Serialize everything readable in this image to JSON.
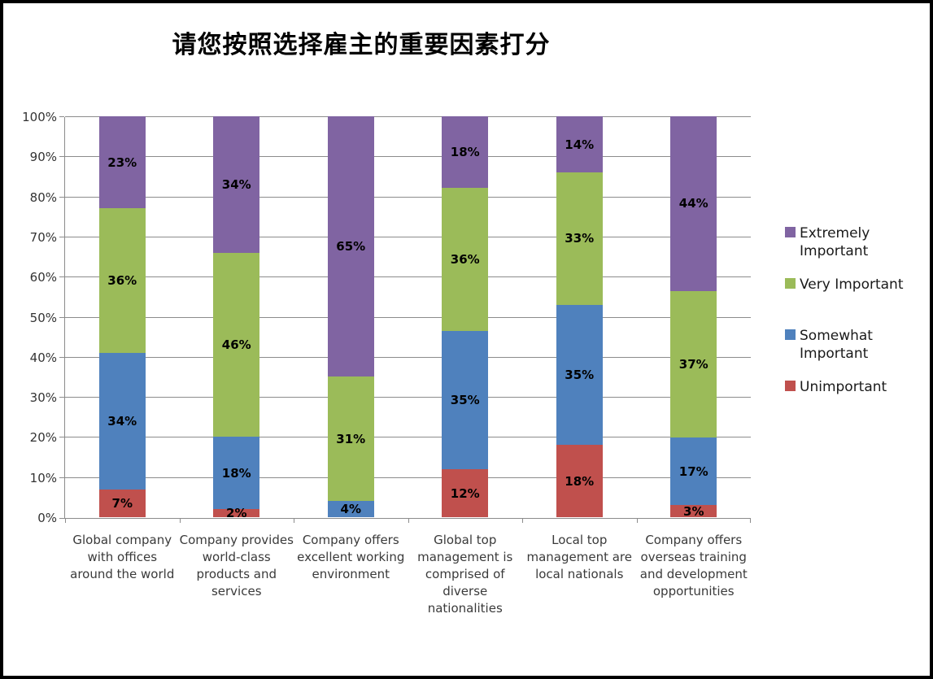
{
  "chart_data": {
    "type": "bar",
    "stacked": true,
    "units": "percent",
    "title": "请您按照选择雇主的重要因素打分",
    "categories": [
      "Global company with offices around the world",
      "Company provides world-class products and services",
      "Company offers excellent working environment",
      "Global top management is comprised of diverse nationalities",
      "Local top management are local nationals",
      "Company offers overseas training and development opportunities"
    ],
    "series": [
      {
        "name": "Unimportant",
        "color": "#C0504D",
        "values": [
          7,
          2,
          0,
          12,
          18,
          3
        ]
      },
      {
        "name": "Somewhat Important",
        "color": "#4F81BD",
        "values": [
          34,
          18,
          4,
          35,
          35,
          17
        ]
      },
      {
        "name": "Very Important",
        "color": "#9BBB59",
        "values": [
          36,
          46,
          31,
          36,
          33,
          37
        ]
      },
      {
        "name": "Extremely Important",
        "color": "#8064A2",
        "values": [
          23,
          34,
          65,
          18,
          14,
          44
        ]
      }
    ],
    "data_labels": [
      "7%",
      "34%",
      "36%",
      "23%",
      "2%",
      "18%",
      "46%",
      "34%",
      "4%",
      "31%",
      "65%",
      "12%",
      "35%",
      "36%",
      "18%",
      "18%",
      "35%",
      "33%",
      "14%",
      "3%",
      "17%",
      "37%",
      "44%"
    ],
    "y_axis": {
      "ticks": [
        "0%",
        "10%",
        "20%",
        "30%",
        "40%",
        "50%",
        "60%",
        "70%",
        "80%",
        "90%",
        "100%"
      ],
      "min": 0,
      "max": 100,
      "grid": true
    },
    "legend": {
      "position": "right",
      "items": [
        "Extremely Important",
        "Very Important",
        "Somewhat Important",
        "Unimportant"
      ]
    }
  },
  "style_colors": {
    "grid": "#8c8c8c",
    "axis": "#8c8c8c",
    "frame_border": "#000000",
    "background": "#ffffff",
    "label_text": "#000000"
  }
}
